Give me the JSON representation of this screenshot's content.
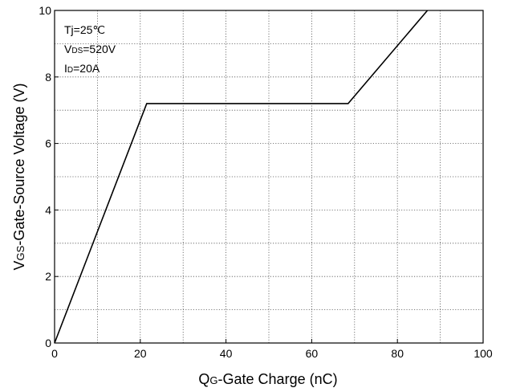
{
  "chart_data": {
    "type": "line",
    "xlabel_main": "Q",
    "xlabel_sub": "G",
    "xlabel_rest": "-Gate Charge (nC)",
    "ylabel_main": "V",
    "ylabel_sub": "GS",
    "ylabel_rest": "-Gate-Source Voltage (V)",
    "xlim": [
      0,
      100
    ],
    "ylim": [
      0,
      10
    ],
    "x_ticks": [
      "0",
      "20",
      "40",
      "60",
      "80",
      "100"
    ],
    "y_ticks": [
      "0",
      "2",
      "4",
      "6",
      "8",
      "10"
    ],
    "grid": "dotted, every 10 nC and 1 V",
    "annotations": {
      "line1": "Tj=25℃",
      "line2_main": "V",
      "line2_sub": "DS",
      "line2_rest": "=520V",
      "line3_main": "I",
      "line3_sub": "D",
      "line3_rest": "=20A"
    },
    "series": [
      {
        "x": [
          0,
          21.5,
          68.5,
          87
        ],
        "y": [
          0,
          7.2,
          7.2,
          10
        ],
        "color": "#000000"
      }
    ]
  }
}
